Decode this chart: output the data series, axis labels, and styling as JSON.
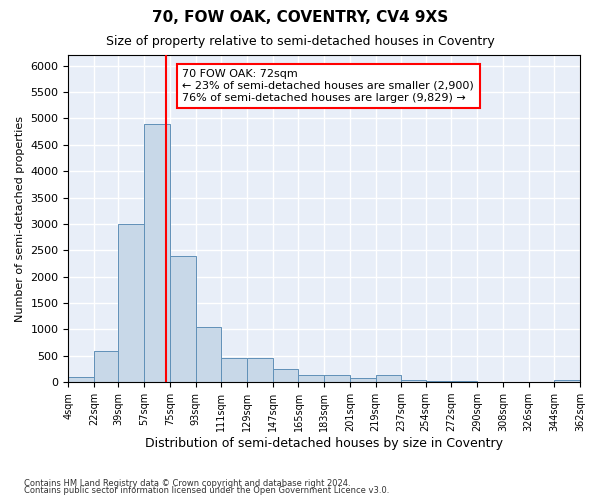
{
  "title": "70, FOW OAK, COVENTRY, CV4 9XS",
  "subtitle": "Size of property relative to semi-detached houses in Coventry",
  "xlabel": "Distribution of semi-detached houses by size in Coventry",
  "ylabel": "Number of semi-detached properties",
  "footnote1": "Contains HM Land Registry data © Crown copyright and database right 2024.",
  "footnote2": "Contains public sector information licensed under the Open Government Licence v3.0.",
  "annotation_title": "70 FOW OAK: 72sqm",
  "annotation_line1": "← 23% of semi-detached houses are smaller (2,900)",
  "annotation_line2": "76% of semi-detached houses are larger (9,829) →",
  "property_size": 72,
  "bar_color": "#c8d8e8",
  "bar_edge_color": "#6090b8",
  "vline_color": "red",
  "background_color": "#e8eef8",
  "grid_color": "#ffffff",
  "bin_edges": [
    4,
    22,
    39,
    57,
    75,
    93,
    111,
    129,
    147,
    165,
    183,
    201,
    219,
    237,
    254,
    272,
    290,
    308,
    326,
    344,
    362
  ],
  "bin_labels": [
    "4sqm",
    "22sqm",
    "39sqm",
    "57sqm",
    "75sqm",
    "93sqm",
    "111sqm",
    "129sqm",
    "147sqm",
    "165sqm",
    "183sqm",
    "201sqm",
    "219sqm",
    "237sqm",
    "254sqm",
    "272sqm",
    "290sqm",
    "308sqm",
    "326sqm",
    "344sqm",
    "362sqm"
  ],
  "bar_heights": [
    100,
    600,
    3000,
    4900,
    2400,
    1050,
    450,
    450,
    250,
    130,
    130,
    80,
    130,
    50,
    20,
    20,
    10,
    10,
    10,
    50
  ],
  "ylim": [
    0,
    6200
  ],
  "yticks": [
    0,
    500,
    1000,
    1500,
    2000,
    2500,
    3000,
    3500,
    4000,
    4500,
    5000,
    5500,
    6000
  ]
}
